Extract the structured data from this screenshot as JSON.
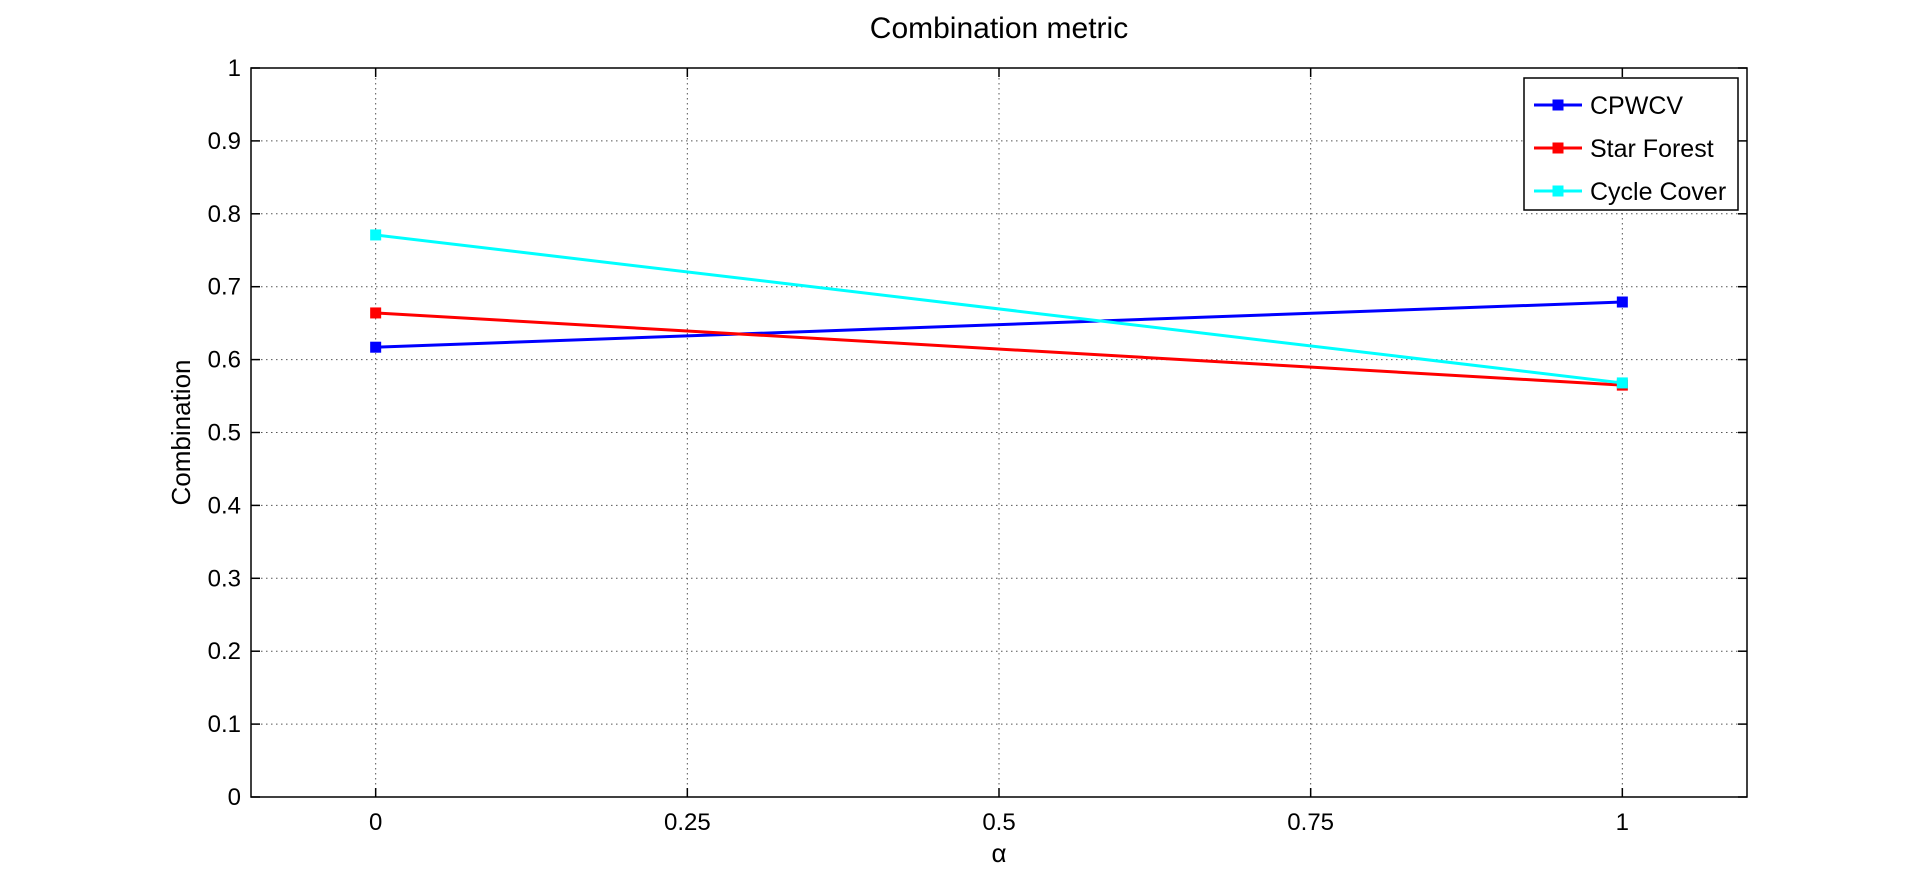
{
  "chart_data": {
    "type": "line",
    "title": "Combination metric",
    "xlabel": "α",
    "ylabel": "Combination",
    "xlim": [
      -0.1,
      1.1
    ],
    "ylim": [
      0,
      1
    ],
    "x_ticks": [
      0,
      0.25,
      0.5,
      0.75,
      1
    ],
    "x_tick_labels": [
      "0",
      "0.25",
      "0.5",
      "0.75",
      "1"
    ],
    "y_ticks": [
      0,
      0.1,
      0.2,
      0.3,
      0.4,
      0.5,
      0.6,
      0.7,
      0.8,
      0.9,
      1
    ],
    "y_tick_labels": [
      "0",
      "0.1",
      "0.2",
      "0.3",
      "0.4",
      "0.5",
      "0.6",
      "0.7",
      "0.8",
      "0.9",
      "1"
    ],
    "grid": true,
    "legend_position": "top-right",
    "marker": "square",
    "series": [
      {
        "name": "CPWCV",
        "color": "#0000ff",
        "x": [
          0,
          1
        ],
        "y": [
          0.617,
          0.679
        ]
      },
      {
        "name": "Star Forest",
        "color": "#ff0000",
        "x": [
          0,
          1
        ],
        "y": [
          0.664,
          0.565
        ]
      },
      {
        "name": "Cycle Cover",
        "color": "#00ffff",
        "x": [
          0,
          1
        ],
        "y": [
          0.771,
          0.568
        ]
      }
    ]
  }
}
